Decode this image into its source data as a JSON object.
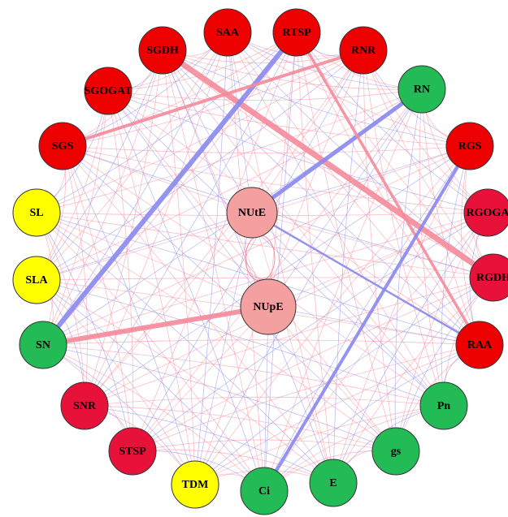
{
  "nodes": [
    {
      "label": "SAA",
      "color": "#ee0000"
    },
    {
      "label": "RTSP",
      "color": "#ee0000"
    },
    {
      "label": "RNR",
      "color": "#ee0000"
    },
    {
      "label": "RN",
      "color": "#22bb55"
    },
    {
      "label": "RGS",
      "color": "#ee0000"
    },
    {
      "label": "RGOGA",
      "color": "#e8113a"
    },
    {
      "label": "RGDH",
      "color": "#e8113a"
    },
    {
      "label": "RAA",
      "color": "#ee0000"
    },
    {
      "label": "Pn",
      "color": "#22bb55"
    },
    {
      "label": "gs",
      "color": "#22bb55"
    },
    {
      "label": "E",
      "color": "#22bb55"
    },
    {
      "label": "Ci",
      "color": "#22bb55"
    },
    {
      "label": "TDM",
      "color": "#ffff00"
    },
    {
      "label": "STSP",
      "color": "#e8113a"
    },
    {
      "label": "SNR",
      "color": "#e8113a"
    },
    {
      "label": "SN",
      "color": "#22bb55"
    },
    {
      "label": "SLA",
      "color": "#ffff00"
    },
    {
      "label": "SL",
      "color": "#ffff00"
    },
    {
      "label": "SGS",
      "color": "#ee0000"
    },
    {
      "label": "SGOGAT",
      "color": "#ee0000"
    },
    {
      "label": "SGDH",
      "color": "#ee0000"
    },
    {
      "label": "NUtE",
      "color": "#f4a0a0"
    },
    {
      "label": "NUpE",
      "color": "#f4a0a0"
    }
  ]
}
